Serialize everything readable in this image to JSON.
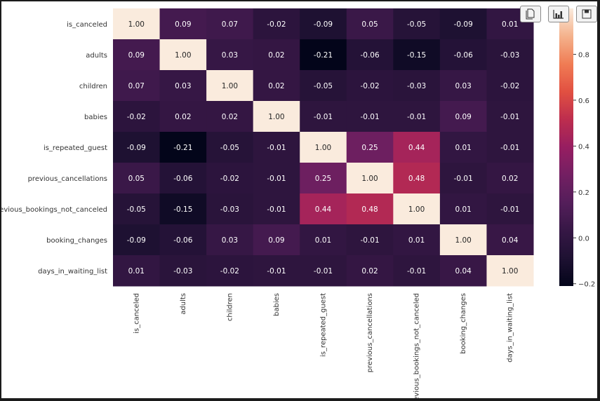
{
  "toolbar": {
    "buttons": [
      {
        "name": "copy",
        "icon": "copy-icon"
      },
      {
        "name": "chart",
        "icon": "bar-chart-icon"
      },
      {
        "name": "save",
        "icon": "save-icon"
      }
    ]
  },
  "chart_data": {
    "type": "heatmap",
    "title": "",
    "xlabel": "",
    "ylabel": "",
    "labels": [
      "is_canceled",
      "adults",
      "children",
      "babies",
      "is_repeated_guest",
      "previous_cancellations",
      "previous_bookings_not_canceled",
      "booking_changes",
      "days_in_waiting_list"
    ],
    "values": [
      [
        1.0,
        0.09,
        0.07,
        -0.02,
        -0.09,
        0.05,
        -0.05,
        -0.09,
        0.01
      ],
      [
        0.09,
        1.0,
        0.03,
        0.02,
        -0.21,
        -0.06,
        -0.15,
        -0.06,
        -0.03
      ],
      [
        0.07,
        0.03,
        1.0,
        0.02,
        -0.05,
        -0.02,
        -0.03,
        0.03,
        -0.02
      ],
      [
        -0.02,
        0.02,
        0.02,
        1.0,
        -0.01,
        -0.01,
        -0.01,
        0.09,
        -0.01
      ],
      [
        -0.09,
        -0.21,
        -0.05,
        -0.01,
        1.0,
        0.25,
        0.44,
        0.01,
        -0.01
      ],
      [
        0.05,
        -0.06,
        -0.02,
        -0.01,
        0.25,
        1.0,
        0.48,
        -0.01,
        0.02
      ],
      [
        -0.05,
        -0.15,
        -0.03,
        -0.01,
        0.44,
        0.48,
        1.0,
        0.01,
        -0.01
      ],
      [
        -0.09,
        -0.06,
        0.03,
        0.09,
        0.01,
        -0.01,
        0.01,
        1.0,
        0.04
      ],
      [
        0.01,
        -0.03,
        -0.02,
        -0.01,
        -0.01,
        0.02,
        -0.01,
        0.04,
        1.0
      ]
    ],
    "annotation_format": "0.00",
    "colormap": "rocket",
    "colorbar": {
      "vmin": -0.21,
      "vmax": 1.0,
      "ticks": [
        0.8,
        0.6,
        0.4,
        0.2,
        0.0,
        -0.2
      ],
      "tick_labels": [
        "0.8",
        "0.6",
        "0.4",
        "0.2",
        "0.0",
        "−0.2"
      ]
    },
    "grid": false,
    "legend": "colorbar-right"
  }
}
